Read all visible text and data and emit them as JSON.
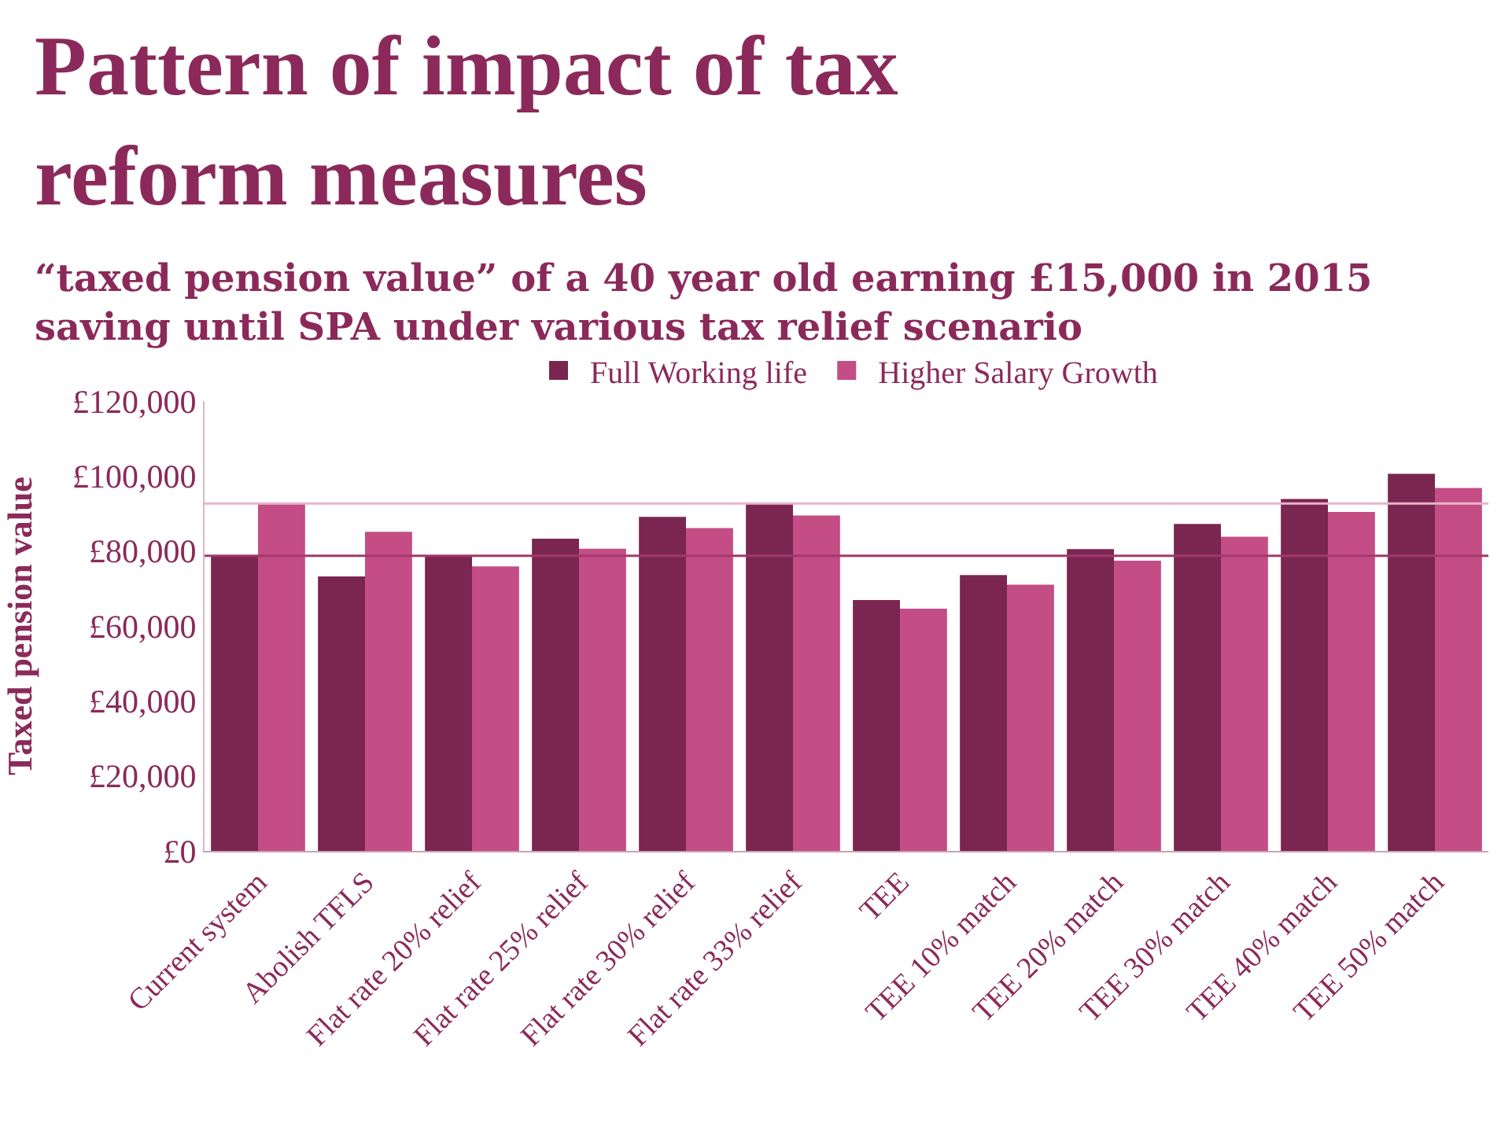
{
  "chart_data": {
    "type": "bar",
    "title": "Pattern of impact of tax reform measures",
    "subtitle": "“taxed pension value” of a 40 year old earning £15,000 in 2015 saving until SPA under various tax relief scenario",
    "ylabel": "Taxed pension value",
    "categories": [
      "Current system",
      "Abolish TFLS",
      "Flat rate 20% relief",
      "Flat rate 25% relief",
      "Flat rate 30% relief",
      "Flat rate 33% relief",
      "TEE",
      "TEE 10% match",
      "TEE 20% match",
      "TEE 30% match",
      "TEE 40% match",
      "TEE 50% match"
    ],
    "series": [
      {
        "name": "Full Working life",
        "color": "#7a2650",
        "values": [
          78700,
          73200,
          78700,
          83300,
          89100,
          92700,
          66900,
          73600,
          80500,
          87200,
          93900,
          100600
        ]
      },
      {
        "name": "Higher Salary Growth",
        "color": "#c44d86",
        "values": [
          92700,
          85100,
          75900,
          80600,
          86100,
          89500,
          64600,
          71000,
          77400,
          83800,
          90400,
          96800
        ]
      }
    ],
    "ref_lines": [
      {
        "axis": "y",
        "value": 92700,
        "color": "#e8b4cb"
      },
      {
        "axis": "y",
        "value": 78700,
        "color": "#a3386c"
      }
    ],
    "ylim": [
      0,
      120000
    ],
    "yticks": [
      {
        "value": 0,
        "label": "£0"
      },
      {
        "value": 20000,
        "label": "£20,000"
      },
      {
        "value": 40000,
        "label": "£40,000"
      },
      {
        "value": 60000,
        "label": "£60,000"
      },
      {
        "value": 80000,
        "label": "£80,000"
      },
      {
        "value": 100000,
        "label": "£100,000"
      },
      {
        "value": 120000,
        "label": "£120,000"
      }
    ],
    "legend": "top"
  }
}
